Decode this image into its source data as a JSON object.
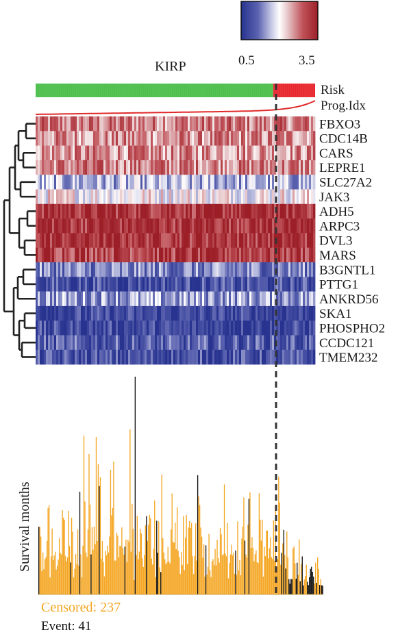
{
  "chart_data": {
    "type": "heatmap",
    "title": "KIRP",
    "colorbar": {
      "min_label": "0.5",
      "max_label": "3.5",
      "low_color": "#27338f",
      "mid_color": "#ffffff",
      "high_color": "#9c1f28"
    },
    "annotation_rows": [
      "Risk",
      "Prog.Idx"
    ],
    "risk_groups": {
      "low_count_fraction": 0.85,
      "low_color": "#4cbf4c",
      "high_color": "#e8262d"
    },
    "genes": [
      {
        "name": "FBXO3",
        "level": 2.7
      },
      {
        "name": "CDC14B",
        "level": 2.6
      },
      {
        "name": "CARS",
        "level": 2.6
      },
      {
        "name": "LEPRE1",
        "level": 2.7
      },
      {
        "name": "SLC27A2",
        "level": 1.6
      },
      {
        "name": "JAK3",
        "level": 2.1
      },
      {
        "name": "ADH5",
        "level": 3.3
      },
      {
        "name": "ARPC3",
        "level": 3.3
      },
      {
        "name": "DVL3",
        "level": 3.3
      },
      {
        "name": "MARS",
        "level": 3.2
      },
      {
        "name": "B3GNTL1",
        "level": 1.3
      },
      {
        "name": "PTTG1",
        "level": 0.9
      },
      {
        "name": "ANKRD56",
        "level": 1.5
      },
      {
        "name": "SKA1",
        "level": 0.8
      },
      {
        "name": "PHOSPHO2",
        "level": 0.8
      },
      {
        "name": "CCDC121",
        "level": 1.0
      },
      {
        "name": "TMEM232",
        "level": 0.9
      }
    ],
    "survival": {
      "ylabel": "Survival months",
      "censored_label": "Censored: 237",
      "event_label": "Event: 41",
      "censored_color": "#f4a623",
      "event_color": "#111111",
      "censored": 237,
      "event": 41
    }
  }
}
